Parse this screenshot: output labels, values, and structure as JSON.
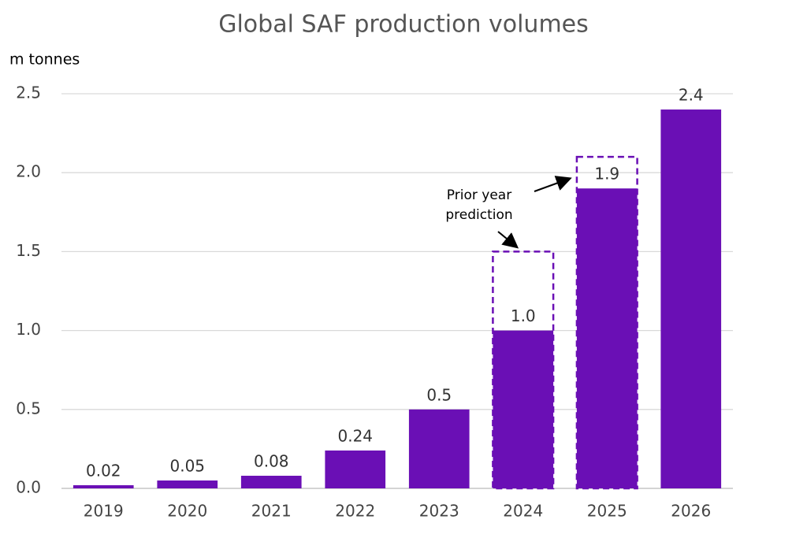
{
  "chart_data": {
    "type": "bar",
    "title": "Global SAF production volumes",
    "y_axis_label": "m tonnes",
    "categories": [
      "2019",
      "2020",
      "2021",
      "2022",
      "2023",
      "2024",
      "2025",
      "2026"
    ],
    "values": [
      0.02,
      0.05,
      0.08,
      0.24,
      0.5,
      1.0,
      1.9,
      2.4
    ],
    "value_labels": [
      "0.02",
      "0.05",
      "0.08",
      "0.24",
      "0.5",
      "1.0",
      "1.9",
      "2.4"
    ],
    "color": "#6a0fb5",
    "prior_year_prediction": [
      null,
      null,
      null,
      null,
      null,
      1.5,
      2.1,
      null
    ],
    "annotation": "Prior year prediction",
    "ylim": [
      0,
      2.5
    ],
    "yticks": [
      {
        "value": 0,
        "label": "0.0"
      },
      0.5,
      {
        "value": 1,
        "label": "1.0"
      },
      1.5,
      {
        "value": 2,
        "label": "2.0"
      },
      2.5
    ],
    "grid": true
  }
}
